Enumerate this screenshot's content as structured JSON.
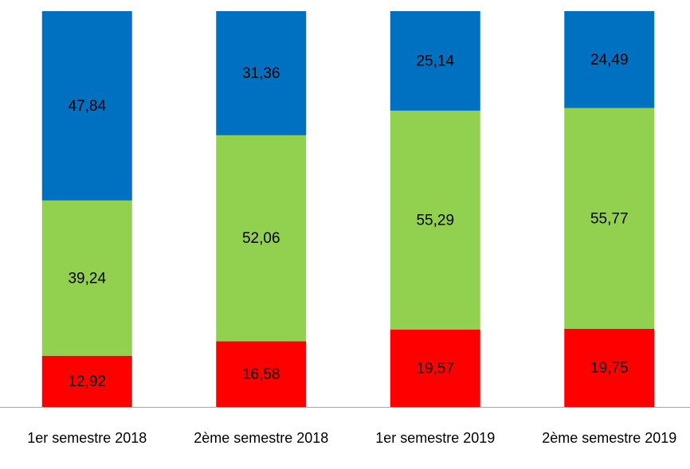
{
  "chart_data": {
    "type": "stacked_bar",
    "categories": [
      "1er semestre 2018",
      "2ème semestre 2018",
      "1er semestre 2019",
      "2ème semestre 2019"
    ],
    "series": [
      {
        "color": "#ff0000",
        "values": [
          12.92,
          16.58,
          19.57,
          19.75
        ],
        "value_labels": [
          "12,92",
          "16,58",
          "19,57",
          "19,75"
        ]
      },
      {
        "color": "#92d050",
        "values": [
          39.24,
          52.06,
          55.29,
          55.77
        ],
        "value_labels": [
          "39,24",
          "52,06",
          "55,29",
          "55,77"
        ]
      },
      {
        "color": "#0070c0",
        "values": [
          47.84,
          31.36,
          25.14,
          24.49
        ],
        "value_labels": [
          "47,84",
          "31,36",
          "25,14",
          "24,49"
        ]
      }
    ],
    "ylim": [
      0,
      100
    ]
  }
}
